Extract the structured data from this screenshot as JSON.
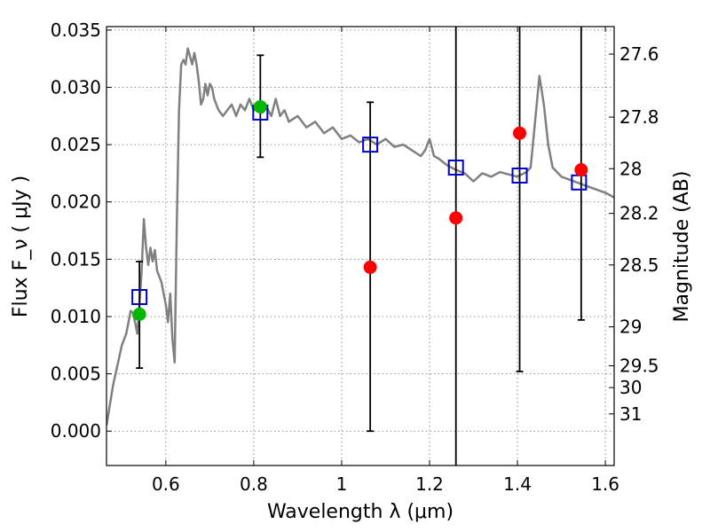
{
  "chart_data": {
    "type": "scatter",
    "xlabel": "Wavelength  λ (μm)",
    "ylabel": "Flux  F_ν ( μJy )",
    "ylabel_right": "Magnitude (AB)",
    "xlim": [
      0.465,
      1.62
    ],
    "ylim": [
      -0.003,
      0.0353
    ],
    "grid": true,
    "x_ticks": [
      0.6,
      0.8,
      1.0,
      1.2,
      1.4,
      1.6
    ],
    "x_tick_labels": [
      "0.6",
      "0.8",
      "1",
      "1.2",
      "1.4",
      "1.6"
    ],
    "y_ticks": [
      0.0,
      0.005,
      0.01,
      0.015,
      0.02,
      0.025,
      0.03,
      0.035
    ],
    "y_tick_labels": [
      "0.000",
      "0.005",
      "0.010",
      "0.015",
      "0.020",
      "0.025",
      "0.030",
      "0.035"
    ],
    "right_ticks": [
      {
        "label": "27.6",
        "flux": 0.0329
      },
      {
        "label": "27.8",
        "flux": 0.0274
      },
      {
        "label": "28",
        "flux": 0.0229
      },
      {
        "label": "28.2",
        "flux": 0.019
      },
      {
        "label": "28.5",
        "flux": 0.0145
      },
      {
        "label": "29",
        "flux": 0.0091
      },
      {
        "label": "29.5",
        "flux": 0.0057
      },
      {
        "label": "30",
        "flux": 0.0038
      },
      {
        "label": "31",
        "flux": 0.0015
      }
    ],
    "series": [
      {
        "kind": "line",
        "color": "#808080",
        "x": [
          0.465,
          0.48,
          0.5,
          0.51,
          0.52,
          0.525,
          0.53,
          0.535,
          0.54,
          0.545,
          0.55,
          0.555,
          0.56,
          0.565,
          0.57,
          0.575,
          0.58,
          0.59,
          0.6,
          0.605,
          0.61,
          0.615,
          0.62,
          0.625,
          0.63,
          0.635,
          0.64,
          0.645,
          0.65,
          0.66,
          0.665,
          0.67,
          0.675,
          0.68,
          0.685,
          0.69,
          0.695,
          0.7,
          0.705,
          0.71,
          0.72,
          0.73,
          0.74,
          0.75,
          0.76,
          0.77,
          0.78,
          0.79,
          0.8,
          0.81,
          0.82,
          0.83,
          0.84,
          0.85,
          0.86,
          0.87,
          0.88,
          0.9,
          0.92,
          0.94,
          0.96,
          0.98,
          1.0,
          1.02,
          1.04,
          1.06,
          1.08,
          1.1,
          1.12,
          1.14,
          1.16,
          1.18,
          1.19,
          1.2,
          1.21,
          1.22,
          1.24,
          1.26,
          1.28,
          1.3,
          1.32,
          1.34,
          1.36,
          1.38,
          1.4,
          1.42,
          1.43,
          1.44,
          1.45,
          1.46,
          1.47,
          1.48,
          1.5,
          1.55,
          1.6,
          1.62
        ],
        "y": [
          0.0005,
          0.004,
          0.0075,
          0.0085,
          0.0105,
          0.0103,
          0.0095,
          0.0085,
          0.011,
          0.014,
          0.0185,
          0.016,
          0.0145,
          0.016,
          0.0148,
          0.0158,
          0.014,
          0.013,
          0.011,
          0.0095,
          0.012,
          0.008,
          0.006,
          0.018,
          0.028,
          0.032,
          0.0324,
          0.032,
          0.0334,
          0.032,
          0.033,
          0.032,
          0.0305,
          0.0285,
          0.029,
          0.0303,
          0.0293,
          0.0303,
          0.03,
          0.029,
          0.028,
          0.0275,
          0.028,
          0.0285,
          0.0275,
          0.0285,
          0.028,
          0.029,
          0.028,
          0.0285,
          0.0278,
          0.0282,
          0.0275,
          0.029,
          0.0275,
          0.028,
          0.027,
          0.0275,
          0.0265,
          0.027,
          0.026,
          0.0265,
          0.0255,
          0.0258,
          0.0252,
          0.0255,
          0.025,
          0.0255,
          0.0248,
          0.025,
          0.0245,
          0.024,
          0.0245,
          0.0255,
          0.024,
          0.0238,
          0.0232,
          0.0228,
          0.0225,
          0.0218,
          0.0225,
          0.0222,
          0.0226,
          0.0224,
          0.0222,
          0.0226,
          0.023,
          0.027,
          0.031,
          0.0285,
          0.025,
          0.023,
          0.0222,
          0.0215,
          0.0208,
          0.0204
        ]
      },
      {
        "kind": "marker",
        "marker": "open-square",
        "color": "#0000cc",
        "x": [
          0.54,
          0.815,
          1.065,
          1.26,
          1.405,
          1.54
        ],
        "y": [
          0.0117,
          0.0278,
          0.025,
          0.023,
          0.0223,
          0.0217
        ]
      },
      {
        "kind": "marker",
        "marker": "filled-circle",
        "color": "#ff0000",
        "x": [
          1.065,
          1.26,
          1.405,
          1.545
        ],
        "y": [
          0.0143,
          0.0186,
          0.026,
          0.0228
        ]
      },
      {
        "kind": "marker",
        "marker": "filled-circle",
        "color": "#00b800",
        "x": [
          0.54,
          0.815
        ],
        "y": [
          0.0102,
          0.0283
        ]
      },
      {
        "kind": "errorbar",
        "color": "#000000",
        "x": [
          0.54,
          0.815,
          1.065,
          1.26,
          1.405,
          1.545
        ],
        "ylow": [
          0.0055,
          0.0239,
          0.0,
          -0.004,
          0.0052,
          0.0097
        ],
        "yhigh": [
          0.0148,
          0.0328,
          0.0287,
          0.037,
          0.037,
          0.037
        ]
      }
    ]
  }
}
